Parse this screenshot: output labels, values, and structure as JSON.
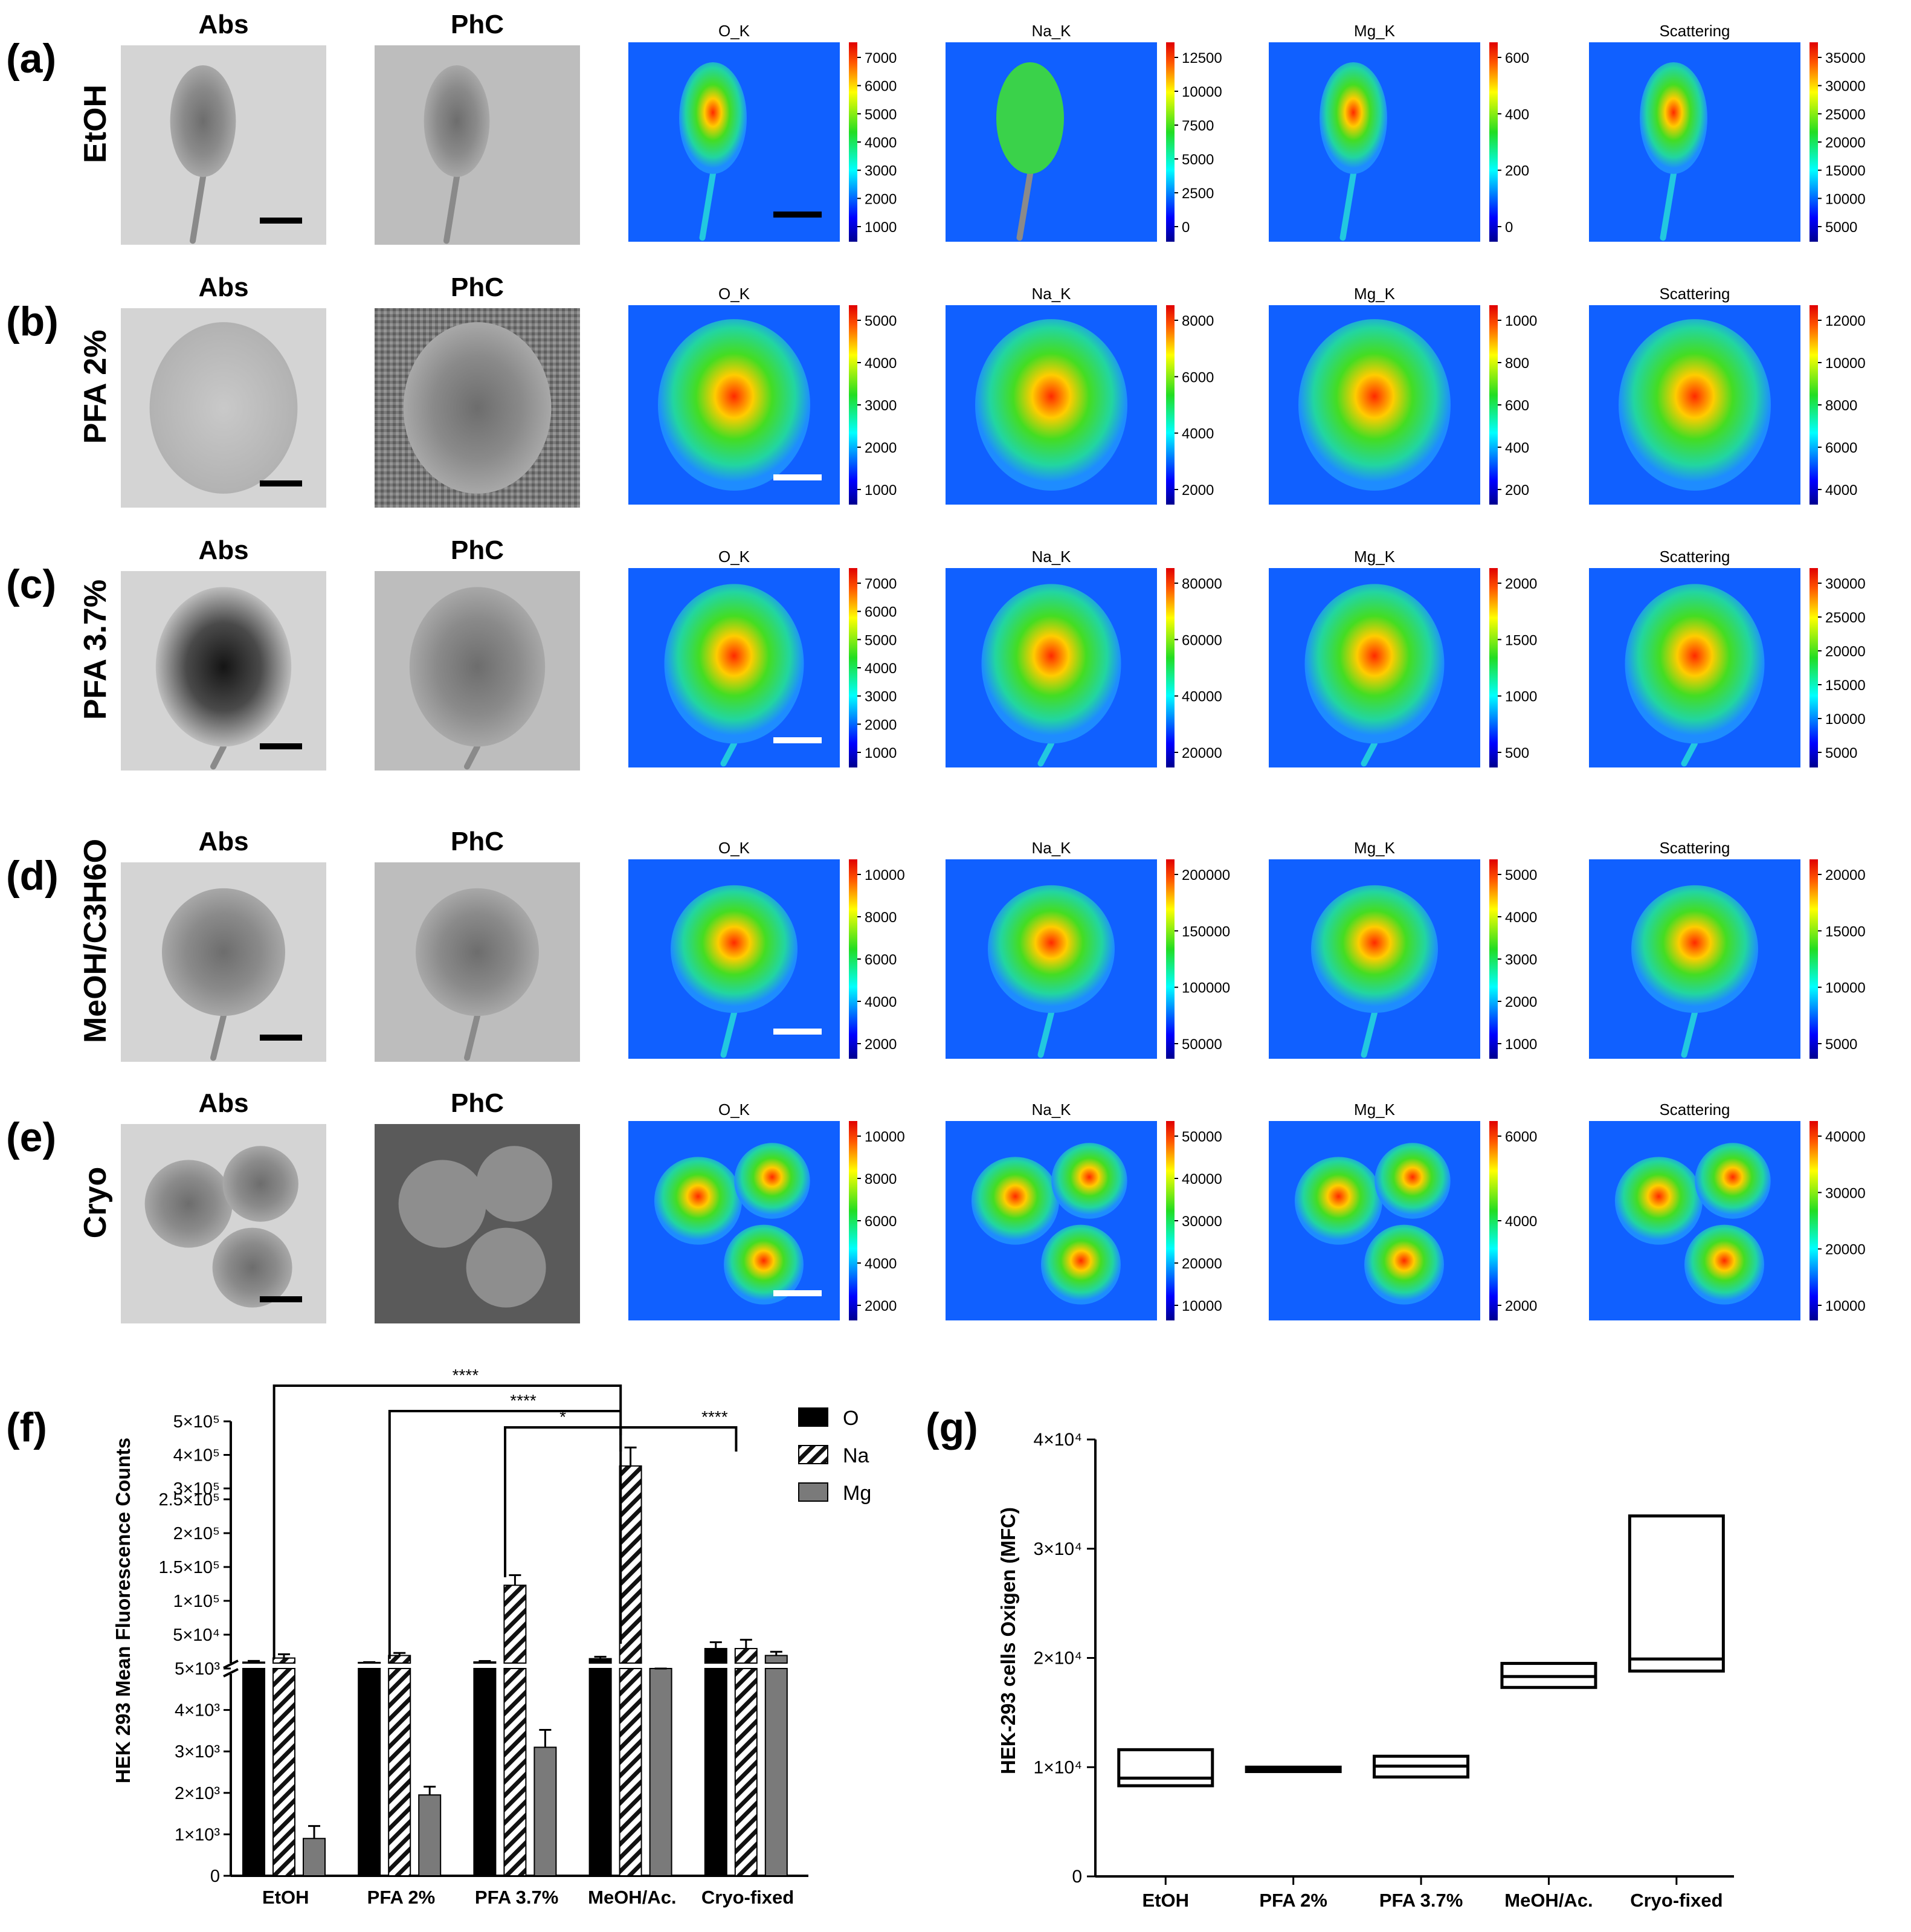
{
  "grid": {
    "column_titles": [
      "Abs",
      "PhC"
    ],
    "rows": [
      {
        "letter": "(a)",
        "label": "EtOH",
        "maps": [
          {
            "title": "O_K",
            "ticks": [
              "7000",
              "6000",
              "5000",
              "4000",
              "3000",
              "2000",
              "1000"
            ],
            "scalebar": "dark"
          },
          {
            "title": "Na_K",
            "ticks": [
              "12500",
              "10000",
              "7500",
              "5000",
              "2500",
              "0"
            ]
          },
          {
            "title": "Mg_K",
            "ticks": [
              "600",
              "400",
              "200",
              "0"
            ]
          },
          {
            "title": "Scattering",
            "ticks": [
              "35000",
              "30000",
              "25000",
              "20000",
              "15000",
              "10000",
              "5000"
            ]
          }
        ]
      },
      {
        "letter": "(b)",
        "label": "PFA 2%",
        "maps": [
          {
            "title": "O_K",
            "ticks": [
              "5000",
              "4000",
              "3000",
              "2000",
              "1000"
            ],
            "scalebar": "light"
          },
          {
            "title": "Na_K",
            "ticks": [
              "8000",
              "6000",
              "4000",
              "2000"
            ]
          },
          {
            "title": "Mg_K",
            "ticks": [
              "1000",
              "800",
              "600",
              "400",
              "200"
            ]
          },
          {
            "title": "Scattering",
            "ticks": [
              "12000",
              "10000",
              "8000",
              "6000",
              "4000"
            ]
          }
        ]
      },
      {
        "letter": "(c)",
        "label": "PFA 3.7%",
        "maps": [
          {
            "title": "O_K",
            "ticks": [
              "7000",
              "6000",
              "5000",
              "4000",
              "3000",
              "2000",
              "1000"
            ],
            "scalebar": "light"
          },
          {
            "title": "Na_K",
            "ticks": [
              "80000",
              "60000",
              "40000",
              "20000"
            ]
          },
          {
            "title": "Mg_K",
            "ticks": [
              "2000",
              "1500",
              "1000",
              "500"
            ]
          },
          {
            "title": "Scattering",
            "ticks": [
              "30000",
              "25000",
              "20000",
              "15000",
              "10000",
              "5000"
            ]
          }
        ]
      },
      {
        "letter": "(d)",
        "label": "MeOH/C3H6O",
        "maps": [
          {
            "title": "O_K",
            "ticks": [
              "10000",
              "8000",
              "6000",
              "4000",
              "2000"
            ],
            "scalebar": "light"
          },
          {
            "title": "Na_K",
            "ticks": [
              "200000",
              "150000",
              "100000",
              "50000"
            ]
          },
          {
            "title": "Mg_K",
            "ticks": [
              "5000",
              "4000",
              "3000",
              "2000",
              "1000"
            ]
          },
          {
            "title": "Scattering",
            "ticks": [
              "20000",
              "15000",
              "10000",
              "5000"
            ]
          }
        ]
      },
      {
        "letter": "(e)",
        "label": "Cryo",
        "maps": [
          {
            "title": "O_K",
            "ticks": [
              "10000",
              "8000",
              "6000",
              "4000",
              "2000"
            ],
            "scalebar": "light"
          },
          {
            "title": "Na_K",
            "ticks": [
              "50000",
              "40000",
              "30000",
              "20000",
              "10000"
            ]
          },
          {
            "title": "Mg_K",
            "ticks": [
              "6000",
              "4000",
              "2000"
            ]
          },
          {
            "title": "Scattering",
            "ticks": [
              "40000",
              "30000",
              "20000",
              "10000"
            ]
          }
        ]
      }
    ]
  },
  "chart_data": [
    {
      "panel": "(f)",
      "type": "bar",
      "ylabel": "HEK 293 Mean Fluorescence Counts",
      "categories": [
        "EtOH",
        "PFA 2%",
        "PFA 3.7%",
        "MeOH/Ac.",
        "Cryo-fixed"
      ],
      "series": [
        {
          "name": "O",
          "values": [
            6500,
            6000,
            6800,
            12000,
            28000
          ],
          "errors": [
            2000,
            500,
            1500,
            3000,
            10000
          ]
        },
        {
          "name": "Na",
          "values": [
            13000,
            17000,
            123000,
            367000,
            28000
          ],
          "errors": [
            6000,
            4000,
            15000,
            55000,
            14000
          ]
        },
        {
          "name": "Mg",
          "values": [
            900,
            1950,
            3100,
            5000,
            17000
          ],
          "errors": [
            300,
            200,
            420,
            2500,
            6000
          ]
        }
      ],
      "ylim_lower": [
        0,
        5000
      ],
      "ylim_upper": [
        5000,
        500000
      ],
      "yticks_lower": [
        "0",
        "1×10³",
        "2×10³",
        "3×10³",
        "4×10³",
        "5×10³"
      ],
      "yticks_upper": [
        "5×10⁴",
        "1×10⁵",
        "1.5×10⁵",
        "2×10⁵",
        "2.5×10⁵",
        "3×10⁵",
        "4×10⁵",
        "5×10⁵"
      ],
      "significance": [
        {
          "label": "****",
          "from": "EtOH",
          "to": "MeOH/Ac."
        },
        {
          "label": "****",
          "from": "PFA 2%",
          "to": "MeOH/Ac."
        },
        {
          "label": "*",
          "from": "PFA 3.7%",
          "to": "MeOH/Ac."
        },
        {
          "label": "****",
          "from": "MeOH/Ac.",
          "to": "Cryo-fixed"
        }
      ]
    },
    {
      "panel": "(g)",
      "type": "box",
      "ylabel": "HEK-293 cells Oxigen (MFC)",
      "categories": [
        "EtOH",
        "PFA 2%",
        "PFA 3.7%",
        "MeOH/Ac.",
        "Cryo-fixed"
      ],
      "boxes": [
        {
          "min": 8300,
          "median": 9000,
          "max": 11600
        },
        {
          "min": 9600,
          "median": 9800,
          "max": 10000
        },
        {
          "min": 9100,
          "median": 10100,
          "max": 11000
        },
        {
          "min": 17300,
          "median": 18300,
          "max": 19500
        },
        {
          "min": 18800,
          "median": 19900,
          "max": 33000
        }
      ],
      "ylim": [
        0,
        40000
      ],
      "yticks": [
        "0",
        "1×10⁴",
        "2×10⁴",
        "3×10⁴",
        "4×10⁴"
      ]
    }
  ]
}
